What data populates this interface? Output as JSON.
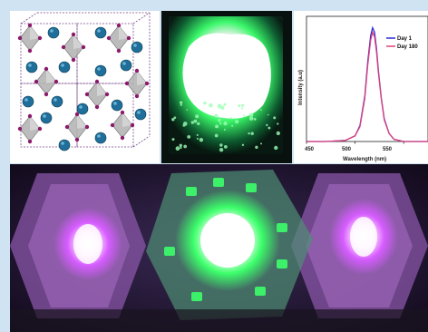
{
  "colors": {
    "frame": "#cfe3f3",
    "day1": "#2b2bd6",
    "day180": "#e0407a",
    "glow_green": "#3cff6a",
    "glow_purple": "#d65cff",
    "octahedron": "#a9a9a9",
    "cation": "#1f6f9a"
  },
  "icons": [
    "perovskite-crystal-structure",
    "green-emitting-film",
    "pc-led-devices"
  ],
  "chart_data": {
    "type": "line",
    "title": "",
    "xlabel": "Wavelength (nm)",
    "ylabel": "Intensity (a.u)",
    "xlim": [
      450,
      575
    ],
    "ylim": [
      0,
      1.1
    ],
    "x_ticks": [
      "450",
      "500",
      "550"
    ],
    "legend_position": "top-right",
    "series": [
      {
        "name": "Day 1",
        "color": "#2b2bd6",
        "x": [
          450,
          470,
          490,
          500,
          505,
          510,
          513,
          516,
          518,
          520,
          522,
          524,
          527,
          530,
          535,
          540,
          550,
          560,
          575
        ],
        "y": [
          0.0,
          0.0,
          0.01,
          0.05,
          0.14,
          0.4,
          0.7,
          0.93,
          1.0,
          0.96,
          0.82,
          0.62,
          0.38,
          0.2,
          0.07,
          0.02,
          0.0,
          0.0,
          0.0
        ]
      },
      {
        "name": "Day 180",
        "color": "#e0407a",
        "x": [
          450,
          470,
          490,
          500,
          505,
          510,
          513,
          516,
          518,
          520,
          522,
          524,
          527,
          530,
          535,
          540,
          550,
          560,
          575
        ],
        "y": [
          0.0,
          0.0,
          0.01,
          0.05,
          0.13,
          0.38,
          0.67,
          0.89,
          0.96,
          0.92,
          0.79,
          0.6,
          0.37,
          0.19,
          0.07,
          0.02,
          0.0,
          0.0,
          0.0
        ]
      }
    ]
  },
  "chart_text": {
    "legend_day1": "Day 1",
    "legend_day180": "Day 180",
    "xlabel": "Wavelength (nm)",
    "ylabel": "Intensity (a.u)",
    "tick_450": "450",
    "tick_500": "500",
    "tick_550": "550"
  }
}
